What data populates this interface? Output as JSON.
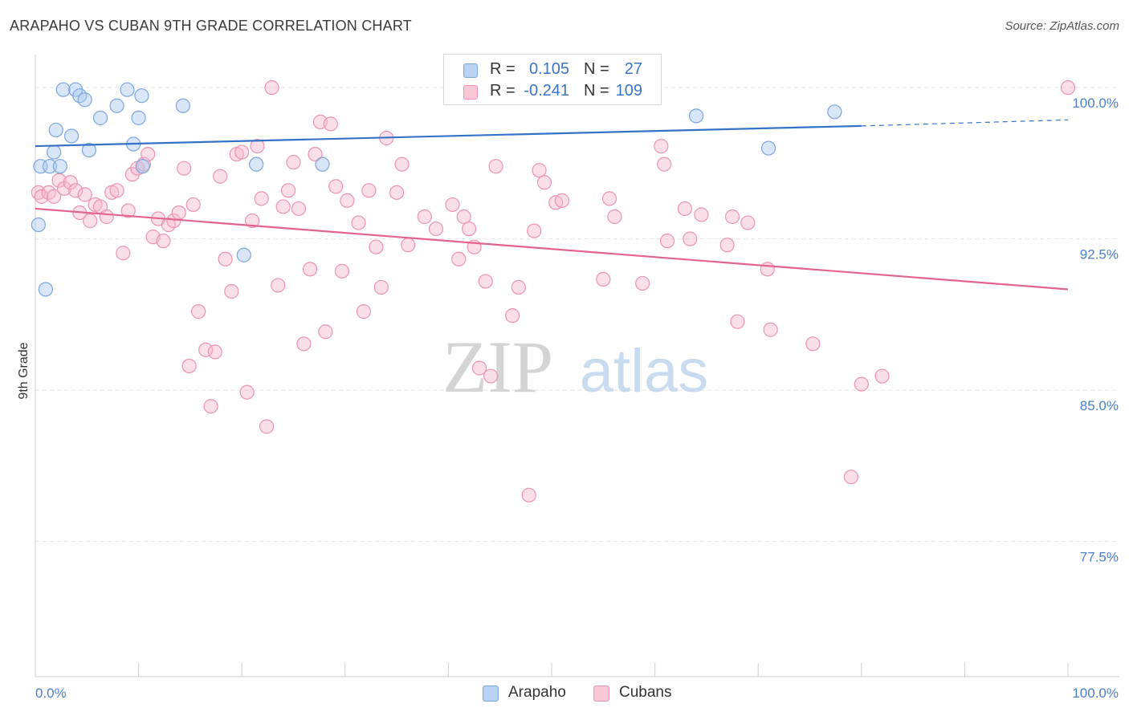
{
  "title": "ARAPAHO VS CUBAN 9TH GRADE CORRELATION CHART",
  "source": "Source: ZipAtlas.com",
  "legend": {
    "rows": [
      {
        "r_label": "R =",
        "r_value": "0.105",
        "n_label": "N =",
        "n_value": "27"
      },
      {
        "r_label": "R =",
        "r_value": "-0.241",
        "n_label": "N =",
        "n_value": "109"
      }
    ]
  },
  "bottom_legend": [
    "Arapaho",
    "Cubans"
  ],
  "watermark": {
    "zip": "ZIP",
    "atlas": "atlas"
  },
  "colors": {
    "arapaho_fill": "#a9c7ee",
    "arapaho_stroke": "#7aa6de",
    "arapaho_line": "#3372c6",
    "cubans_fill": "#f6b9cc",
    "cubans_stroke": "#ec93b0",
    "cubans_line": "#e3638f",
    "tick_label": "#4a7fcc",
    "grid": "#e2e2e2"
  },
  "chart_data": {
    "type": "scatter",
    "title": "ARAPAHO VS CUBAN 9TH GRADE CORRELATION CHART",
    "xlabel": "",
    "ylabel": "9th Grade",
    "xlim": [
      0,
      100
    ],
    "ylim": [
      70.8,
      101.2
    ],
    "x_tick_labels": [
      "0.0%",
      "100.0%"
    ],
    "y_ticks": [
      100.0,
      92.5,
      85.0,
      77.5
    ],
    "y_tick_labels": [
      "100.0%",
      "92.5%",
      "85.0%",
      "77.5%"
    ],
    "grid": "horizontal dashed",
    "series": [
      {
        "name": "Arapaho",
        "r": 0.105,
        "n": 27,
        "trend": {
          "x": [
            0,
            80
          ],
          "y": [
            97.1,
            98.1
          ],
          "dashed_to": [
            100,
            98.4
          ]
        },
        "points": [
          [
            0.5,
            96.1
          ],
          [
            0.3,
            93.2
          ],
          [
            1.0,
            90.0
          ],
          [
            1.4,
            96.1
          ],
          [
            1.8,
            96.8
          ],
          [
            2.0,
            97.9
          ],
          [
            2.4,
            96.1
          ],
          [
            2.7,
            99.9
          ],
          [
            3.5,
            97.6
          ],
          [
            3.9,
            99.9
          ],
          [
            4.3,
            99.6
          ],
          [
            4.8,
            99.4
          ],
          [
            5.2,
            96.9
          ],
          [
            6.3,
            98.5
          ],
          [
            7.9,
            99.1
          ],
          [
            8.9,
            99.9
          ],
          [
            9.5,
            97.2
          ],
          [
            10.0,
            98.5
          ],
          [
            10.3,
            99.6
          ],
          [
            10.4,
            96.1
          ],
          [
            14.3,
            99.1
          ],
          [
            20.2,
            91.7
          ],
          [
            21.4,
            96.2
          ],
          [
            27.8,
            96.2
          ],
          [
            64.0,
            98.6
          ],
          [
            71.0,
            97.0
          ],
          [
            77.4,
            98.8
          ]
        ]
      },
      {
        "name": "Cubans",
        "r": -0.241,
        "n": 109,
        "trend": {
          "x": [
            0,
            100
          ],
          "y": [
            94.0,
            90.0
          ]
        },
        "points": [
          [
            0.3,
            94.8
          ],
          [
            0.6,
            94.6
          ],
          [
            1.3,
            94.8
          ],
          [
            1.8,
            94.6
          ],
          [
            2.3,
            95.4
          ],
          [
            2.8,
            95.0
          ],
          [
            3.4,
            95.3
          ],
          [
            3.9,
            94.9
          ],
          [
            4.3,
            93.8
          ],
          [
            4.8,
            94.7
          ],
          [
            5.3,
            93.4
          ],
          [
            5.8,
            94.2
          ],
          [
            6.3,
            94.1
          ],
          [
            6.9,
            93.6
          ],
          [
            7.4,
            94.8
          ],
          [
            7.9,
            94.9
          ],
          [
            8.5,
            91.8
          ],
          [
            9.0,
            93.9
          ],
          [
            9.4,
            95.7
          ],
          [
            9.9,
            96.0
          ],
          [
            10.5,
            96.2
          ],
          [
            10.9,
            96.7
          ],
          [
            11.4,
            92.6
          ],
          [
            11.9,
            93.5
          ],
          [
            12.4,
            92.4
          ],
          [
            12.9,
            93.2
          ],
          [
            13.4,
            93.4
          ],
          [
            13.9,
            93.8
          ],
          [
            14.4,
            96.0
          ],
          [
            14.9,
            86.2
          ],
          [
            15.3,
            94.2
          ],
          [
            15.8,
            88.9
          ],
          [
            16.5,
            87.0
          ],
          [
            17.0,
            84.2
          ],
          [
            17.4,
            86.9
          ],
          [
            17.9,
            95.6
          ],
          [
            18.4,
            91.5
          ],
          [
            19.0,
            89.9
          ],
          [
            19.5,
            96.7
          ],
          [
            20.0,
            96.8
          ],
          [
            20.5,
            84.9
          ],
          [
            21.0,
            93.4
          ],
          [
            21.5,
            97.1
          ],
          [
            21.9,
            94.5
          ],
          [
            22.4,
            83.2
          ],
          [
            22.9,
            100.0
          ],
          [
            23.5,
            90.2
          ],
          [
            24.0,
            94.1
          ],
          [
            24.5,
            94.9
          ],
          [
            25.0,
            96.3
          ],
          [
            25.5,
            94.0
          ],
          [
            26.0,
            87.3
          ],
          [
            26.6,
            91.0
          ],
          [
            27.1,
            96.7
          ],
          [
            27.6,
            98.3
          ],
          [
            28.1,
            87.9
          ],
          [
            28.6,
            98.2
          ],
          [
            29.1,
            95.1
          ],
          [
            29.7,
            90.9
          ],
          [
            30.2,
            94.4
          ],
          [
            31.3,
            93.3
          ],
          [
            31.8,
            88.9
          ],
          [
            32.3,
            94.9
          ],
          [
            33.0,
            92.1
          ],
          [
            33.5,
            90.1
          ],
          [
            34.0,
            97.5
          ],
          [
            35.0,
            94.8
          ],
          [
            35.5,
            96.2
          ],
          [
            36.1,
            92.2
          ],
          [
            37.7,
            93.6
          ],
          [
            38.8,
            93.0
          ],
          [
            40.4,
            94.2
          ],
          [
            41.0,
            91.5
          ],
          [
            41.5,
            93.6
          ],
          [
            42.0,
            93.0
          ],
          [
            42.5,
            92.1
          ],
          [
            43.0,
            86.1
          ],
          [
            43.6,
            90.4
          ],
          [
            44.1,
            85.7
          ],
          [
            44.6,
            96.1
          ],
          [
            46.2,
            88.7
          ],
          [
            46.8,
            90.1
          ],
          [
            47.8,
            79.8
          ],
          [
            48.3,
            92.9
          ],
          [
            48.8,
            95.9
          ],
          [
            49.3,
            95.3
          ],
          [
            50.4,
            94.3
          ],
          [
            51.0,
            94.4
          ],
          [
            55.0,
            90.5
          ],
          [
            55.6,
            94.5
          ],
          [
            56.1,
            93.6
          ],
          [
            58.8,
            90.3
          ],
          [
            60.6,
            97.1
          ],
          [
            60.9,
            96.2
          ],
          [
            61.2,
            92.4
          ],
          [
            62.9,
            94.0
          ],
          [
            63.4,
            92.5
          ],
          [
            64.5,
            93.7
          ],
          [
            67.0,
            92.2
          ],
          [
            67.5,
            93.6
          ],
          [
            68.0,
            88.4
          ],
          [
            69.0,
            93.3
          ],
          [
            70.9,
            91.0
          ],
          [
            71.2,
            88.0
          ],
          [
            75.3,
            87.3
          ],
          [
            79.0,
            80.7
          ],
          [
            80.0,
            85.3
          ],
          [
            82.0,
            85.7
          ],
          [
            100.0,
            100.0
          ]
        ]
      }
    ]
  }
}
